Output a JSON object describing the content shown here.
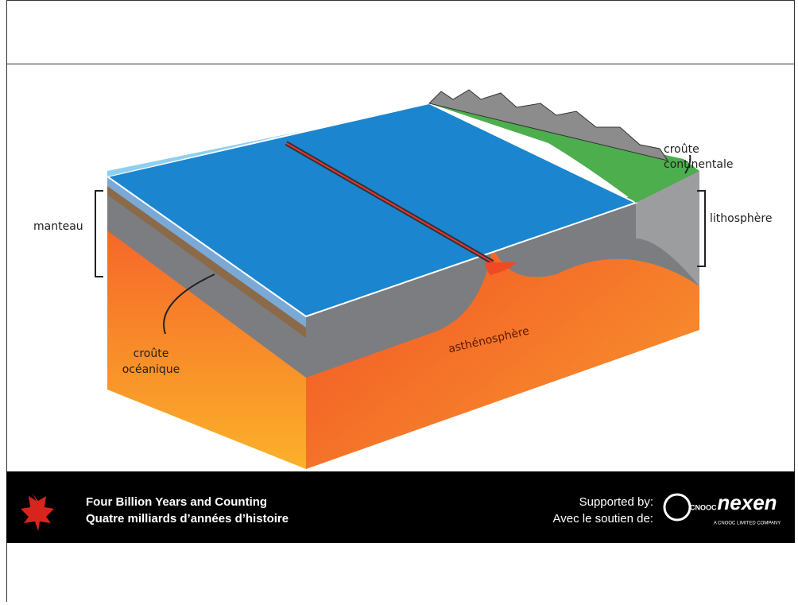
{
  "labels": {
    "mantle": "manteau",
    "continental_crust": [
      "croûte",
      "continentale"
    ],
    "lithosphere": "lithosphère",
    "oceanic_crust": [
      "croûte",
      "océanique"
    ],
    "asthenosphere": "asthénosphère"
  },
  "footer": {
    "title_en": "Four Billion Years and Counting",
    "title_fr": "Quatre milliards d’années d’histoire",
    "supported_en": "Supported by:",
    "supported_fr": "Avec le soutien de:",
    "sponsor": "nexen",
    "sponsor_tagline": "A CNOOC LIMITED COMPANY",
    "cnooc": "CNOOC"
  }
}
